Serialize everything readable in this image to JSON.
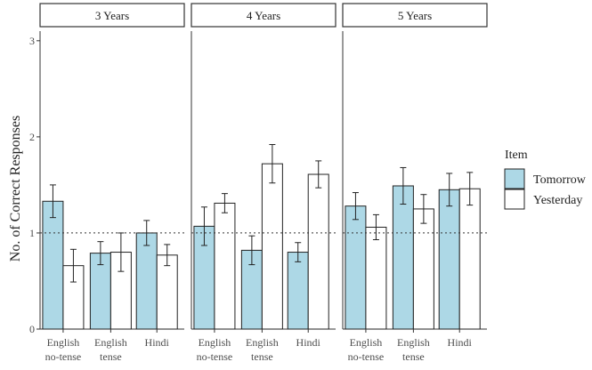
{
  "chart_data": {
    "type": "bar",
    "ylabel": "No. of Correct Responses",
    "ylim": [
      0,
      3.1
    ],
    "yticks": [
      0,
      1,
      2,
      3
    ],
    "reference_line": 1,
    "categories": [
      "English\nno-tense",
      "English\ntense",
      "Hindi"
    ],
    "legend": {
      "title": "Item",
      "placement": "right",
      "entries": [
        {
          "name": "Tomorrow",
          "color": "#add8e6"
        },
        {
          "name": "Yesterday",
          "color": "#ffffff"
        }
      ]
    },
    "panels": [
      {
        "title": "3 Years",
        "series": [
          {
            "name": "Tomorrow",
            "values": [
              1.33,
              0.79,
              1.0
            ],
            "errors": [
              0.17,
              0.12,
              0.13
            ]
          },
          {
            "name": "Yesterday",
            "values": [
              0.66,
              0.8,
              0.77
            ],
            "errors": [
              0.17,
              0.2,
              0.11
            ]
          }
        ]
      },
      {
        "title": "4 Years",
        "series": [
          {
            "name": "Tomorrow",
            "values": [
              1.07,
              0.82,
              0.8
            ],
            "errors": [
              0.2,
              0.15,
              0.1
            ]
          },
          {
            "name": "Yesterday",
            "values": [
              1.31,
              1.72,
              1.61
            ],
            "errors": [
              0.1,
              0.2,
              0.14
            ]
          }
        ]
      },
      {
        "title": "5 Years",
        "series": [
          {
            "name": "Tomorrow",
            "values": [
              1.28,
              1.49,
              1.45
            ],
            "errors": [
              0.14,
              0.19,
              0.17
            ]
          },
          {
            "name": "Yesterday",
            "values": [
              1.06,
              1.25,
              1.46
            ],
            "errors": [
              0.13,
              0.15,
              0.17
            ]
          }
        ]
      }
    ]
  }
}
